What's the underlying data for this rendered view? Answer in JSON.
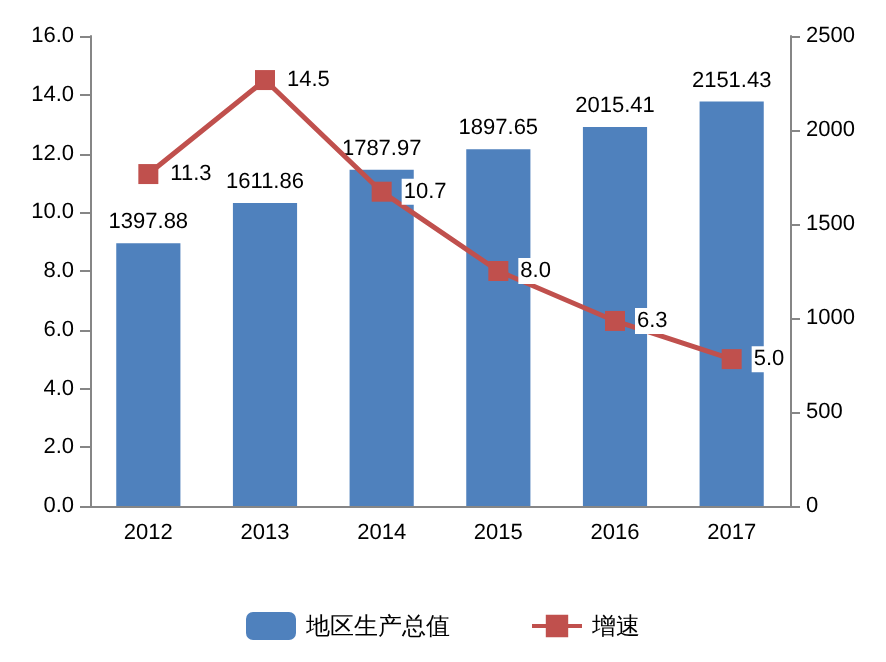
{
  "chart_data": {
    "type": "bar",
    "categories": [
      "2012",
      "2013",
      "2014",
      "2015",
      "2016",
      "2017"
    ],
    "series": [
      {
        "name": "地区生产总值",
        "axis": "y2",
        "color": "#4f81bd",
        "values": [
          1397.88,
          1611.86,
          1787.97,
          1897.65,
          2015.41,
          2151.43
        ],
        "value_labels": [
          "1397.88",
          "1611.86",
          "1787.97",
          "1897.65",
          "2015.41",
          "2151.43"
        ]
      },
      {
        "name": "增速",
        "type": "line",
        "axis": "y",
        "color": "#c0504d",
        "marker": "square",
        "values": [
          11.3,
          14.5,
          10.7,
          8.0,
          6.3,
          5.0
        ],
        "value_labels": [
          "11.3",
          "14.5",
          "10.7",
          "8.0",
          "6.3",
          "5.0"
        ]
      }
    ],
    "ylim": [
      0,
      16
    ],
    "yticks": [
      {
        "value": 0,
        "label": "0.0"
      },
      {
        "value": 2,
        "label": "2.0"
      },
      {
        "value": 4,
        "label": "4.0"
      },
      {
        "value": 6,
        "label": "6.0"
      },
      {
        "value": 8,
        "label": "8.0"
      },
      {
        "value": 10,
        "label": "10.0"
      },
      {
        "value": 12,
        "label": "12.0"
      },
      {
        "value": 14,
        "label": "14.0"
      },
      {
        "value": 16,
        "label": "16.0"
      }
    ],
    "y2lim": [
      0,
      2500
    ],
    "y2ticks": [
      0,
      500,
      1000,
      1500,
      2000,
      2500
    ],
    "legend": "bottom",
    "grid": false
  }
}
